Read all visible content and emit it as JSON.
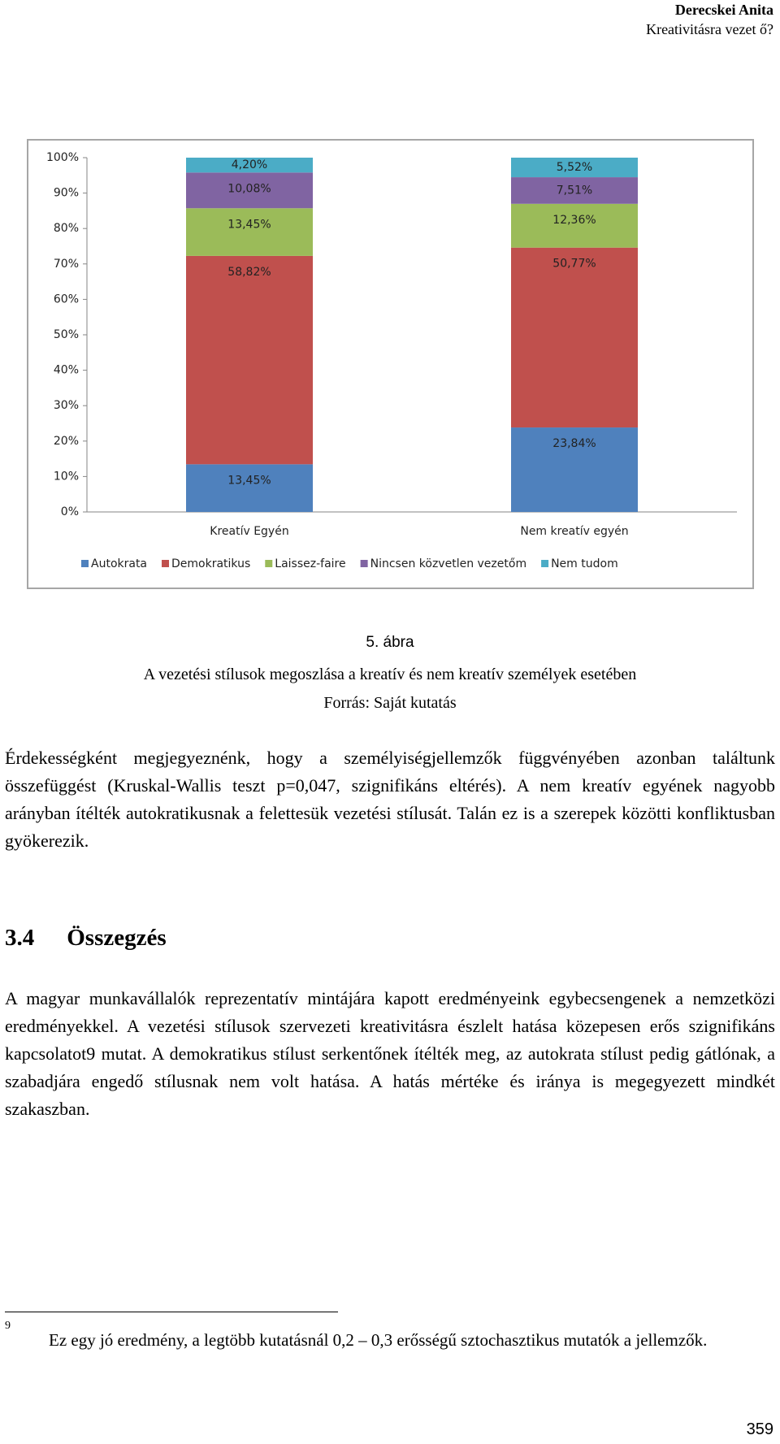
{
  "header": {
    "author": "Derecskei Anita",
    "title": "Kreativitásra vezet ő?"
  },
  "chart_data": {
    "type": "bar",
    "stacked": true,
    "categories": [
      "Kreatív Egyén",
      "Nem kreatív egyén"
    ],
    "series": [
      {
        "name": "Autokrata",
        "color": "#4f81bd",
        "values": [
          13.45,
          23.84
        ],
        "value_labels": [
          "13,45%",
          "23,84%"
        ]
      },
      {
        "name": "Demokratikus",
        "color": "#c0504d",
        "values": [
          58.82,
          50.77
        ],
        "value_labels": [
          "58,82%",
          "50,77%"
        ]
      },
      {
        "name": "Laissez-faire",
        "color": "#9bbb59",
        "values": [
          13.45,
          12.36
        ],
        "value_labels": [
          "13,45%",
          "12,36%"
        ]
      },
      {
        "name": "Nincsen közvetlen vezetőm",
        "color": "#8064a2",
        "values": [
          10.08,
          7.51
        ],
        "value_labels": [
          "10,08%",
          "7,51%"
        ]
      },
      {
        "name": "Nem tudom",
        "color": "#4bacc6",
        "values": [
          4.2,
          5.52
        ],
        "value_labels": [
          "4,20%",
          "5,52%"
        ]
      }
    ],
    "ylim": [
      0,
      100
    ],
    "yticks": [
      {
        "value": 0,
        "label": "0%"
      },
      {
        "value": 10,
        "label": "10%"
      },
      {
        "value": 20,
        "label": "20%"
      },
      {
        "value": 30,
        "label": "30%"
      },
      {
        "value": 40,
        "label": "40%"
      },
      {
        "value": 50,
        "label": "50%"
      },
      {
        "value": 60,
        "label": "60%"
      },
      {
        "value": 70,
        "label": "70%"
      },
      {
        "value": 80,
        "label": "80%"
      },
      {
        "value": 90,
        "label": "90%"
      },
      {
        "value": 100,
        "label": "100%"
      }
    ],
    "grid": false,
    "legend": "bottom"
  },
  "caption": {
    "number": "5. ábra",
    "title": "A vezetési stílusok megoszlása a kreatív és nem kreatív személyek esetében",
    "source": "Forrás: Saját kutatás"
  },
  "paragraphs": [
    "Érdekességként megjegyeznénk, hogy a személyiségjellemzők függvényében azonban találtunk összefüggést (Kruskal-Wallis teszt p=0,047, szignifikáns eltérés). A nem kreatív egyének nagyobb arányban ítélték autokratikusnak a felettesük vezetési stílusát. Talán ez is a szerepek közötti konfliktusban gyökerezik."
  ],
  "section": {
    "number": "3.4",
    "title": "Összegzés",
    "paragraphs": [
      "A magyar munkavállalók reprezentatív mintájára kapott eredményeink egybecsengenek a nemzetközi eredményekkel. A vezetési stílusok szervezeti kreativitásra észlelt hatása közepesen erős szignifikáns kapcsolatot9 mutat. A demokratikus stílust serkentőnek ítélték meg, az autokrata stílust pedig gátlónak, a szabadjára engedő stílusnak nem volt hatása. A hatás mértéke és iránya is megegyezett mindkét szakaszban."
    ]
  },
  "footnote": {
    "number": "9",
    "text": "Ez egy jó eredmény, a legtöbb kutatásnál 0,2 – 0,3 erősségű sztochasztikus mutatók a jellemzők."
  },
  "page_number": "359"
}
